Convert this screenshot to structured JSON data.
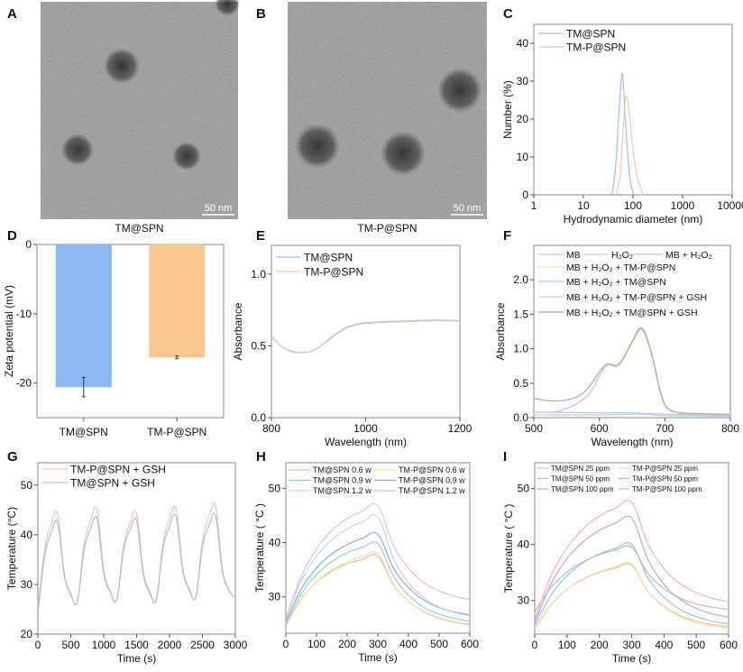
{
  "images": [
    {
      "panel": "A",
      "caption": "TM@SPN",
      "scale_bar": "50 nm"
    },
    {
      "panel": "B",
      "caption": "TM-P@SPN",
      "scale_bar": "50 nm"
    }
  ],
  "chart_data": [
    {
      "panel": "C",
      "type": "line",
      "xscale": "log",
      "xlabel": "Hydrodynamic diameter (nm)",
      "ylabel": "Number (%)",
      "xlim": [
        1,
        10000
      ],
      "ylim": [
        0,
        45
      ],
      "xticks": [
        1,
        10,
        100,
        1000,
        10000
      ],
      "xtick_labels": [
        "1",
        "10",
        "100",
        "1000",
        "10000"
      ],
      "yticks": [
        0,
        10,
        20,
        30,
        40
      ],
      "legend": "top-left",
      "series": [
        {
          "name": "TM@SPN",
          "color": "#9fc0e6",
          "x": [
            38,
            45,
            50,
            55,
            60,
            65,
            70,
            80,
            90,
            105
          ],
          "y": [
            0,
            8,
            18,
            26,
            32,
            28,
            20,
            9,
            3,
            0
          ]
        },
        {
          "name": "TM-P@SPN",
          "color": "#f5c8a8",
          "x": [
            45,
            55,
            60,
            65,
            70,
            75,
            80,
            90,
            100,
            120,
            150,
            170
          ],
          "y": [
            0,
            5,
            12,
            20,
            25,
            26,
            24,
            18,
            12,
            5,
            1,
            0
          ]
        }
      ]
    },
    {
      "panel": "D",
      "type": "bar",
      "ylabel": "Zeta potential (mV)",
      "xlabel": "",
      "ylim": [
        -25,
        0
      ],
      "yticks": [
        0,
        -10,
        -20
      ],
      "categories": [
        "TM@SPN",
        "TM-P@SPN"
      ],
      "values": [
        -20.6,
        -16.3
      ],
      "errors": [
        1.4,
        0.2
      ],
      "colors": [
        "#8ab8f0",
        "#f8c890"
      ]
    },
    {
      "panel": "E",
      "type": "line",
      "xlabel": "Wavelength (nm)",
      "ylabel": "Absorbance",
      "xlim": [
        800,
        1200
      ],
      "ylim": [
        0,
        1.2
      ],
      "xticks": [
        800,
        1000,
        1200
      ],
      "yticks": [
        0.0,
        0.5,
        1.0
      ],
      "ytick_decimals": 1,
      "legend": "top-left",
      "series": [
        {
          "name": "TM@SPN",
          "color": "#a8c4e8",
          "x": [
            800,
            820,
            840,
            860,
            880,
            900,
            920,
            940,
            960,
            980,
            1000,
            1050,
            1100,
            1150,
            1200
          ],
          "y": [
            0.57,
            0.5,
            0.465,
            0.455,
            0.46,
            0.49,
            0.54,
            0.59,
            0.63,
            0.65,
            0.66,
            0.67,
            0.675,
            0.68,
            0.675
          ]
        },
        {
          "name": "TM-P@SPN",
          "color": "#f0c89c",
          "x": [
            800,
            820,
            840,
            860,
            880,
            900,
            920,
            940,
            960,
            980,
            1000,
            1050,
            1100,
            1150,
            1200
          ],
          "y": [
            0.57,
            0.5,
            0.462,
            0.452,
            0.458,
            0.488,
            0.535,
            0.585,
            0.625,
            0.645,
            0.655,
            0.665,
            0.67,
            0.675,
            0.672
          ]
        }
      ]
    },
    {
      "panel": "F",
      "type": "line",
      "xlabel": "Wavelength (nm)",
      "ylabel": "Absorbance",
      "xlim": [
        500,
        800
      ],
      "ylim": [
        0,
        2.5
      ],
      "xticks": [
        500,
        600,
        700,
        800
      ],
      "yticks": [
        0.0,
        0.5,
        1.0,
        1.5,
        2.0
      ],
      "ytick_decimals": 1,
      "legend": "top",
      "series": [
        {
          "name": "MB",
          "color": "#f2b8a0",
          "x": [
            500,
            540,
            580,
            600,
            612,
            630,
            650,
            665,
            680,
            695,
            710,
            750,
            800
          ],
          "y": [
            0.08,
            0.1,
            0.3,
            0.6,
            0.77,
            0.77,
            1.1,
            1.28,
            0.9,
            0.3,
            0.1,
            0.05,
            0.04
          ]
        },
        {
          "name": "H₂O₂",
          "color": "#b8d0ea",
          "x": [
            500,
            600,
            665,
            700,
            800
          ],
          "y": [
            0.04,
            0.04,
            0.05,
            0.03,
            0.02
          ]
        },
        {
          "name": "MB + H₂O₂",
          "color": "#c8c8c8",
          "x": [
            500,
            540,
            580,
            600,
            612,
            630,
            650,
            665,
            680,
            695,
            710,
            750,
            800
          ],
          "y": [
            0.08,
            0.1,
            0.3,
            0.6,
            0.76,
            0.76,
            1.1,
            1.29,
            0.9,
            0.3,
            0.1,
            0.05,
            0.04
          ]
        },
        {
          "name": "MB + H₂O₂ + TM-P@SPN",
          "color": "#f5eaa0",
          "x": [
            500,
            540,
            580,
            600,
            612,
            630,
            650,
            665,
            680,
            695,
            710,
            750,
            800
          ],
          "y": [
            0.08,
            0.1,
            0.3,
            0.6,
            0.75,
            0.75,
            1.08,
            1.25,
            0.9,
            0.3,
            0.1,
            0.05,
            0.04
          ]
        },
        {
          "name": "MB + H₂O₂ + TM@SPN",
          "color": "#a8c8ee",
          "x": [
            500,
            600,
            650,
            700,
            800
          ],
          "y": [
            0.08,
            0.07,
            0.07,
            0.05,
            0.03
          ]
        },
        {
          "name": "MB + H₂O₂ + TM-P@SPN + GSH",
          "color": "#d8c0e8",
          "x": [
            500,
            540,
            580,
            600,
            612,
            630,
            650,
            665,
            680,
            695,
            710,
            750,
            800
          ],
          "y": [
            0.08,
            0.1,
            0.3,
            0.6,
            0.77,
            0.77,
            1.1,
            1.3,
            0.92,
            0.32,
            0.1,
            0.05,
            0.04
          ]
        },
        {
          "name": "MB + H₂O₂ + TM@SPN + GSH",
          "color": "#b0a8a0",
          "x": [
            500,
            530,
            560,
            580,
            600,
            612,
            630,
            650,
            665,
            680,
            695,
            710,
            750,
            800
          ],
          "y": [
            0.28,
            0.24,
            0.28,
            0.4,
            0.66,
            0.78,
            0.78,
            1.1,
            1.3,
            0.92,
            0.32,
            0.1,
            0.06,
            0.05
          ]
        }
      ]
    },
    {
      "panel": "G",
      "type": "line",
      "xlabel": "Time (s)",
      "ylabel": "Temperature (°C)",
      "xlim": [
        0,
        3000
      ],
      "ylim": [
        20,
        54.5
      ],
      "xticks": [
        0,
        500,
        1000,
        1500,
        2000,
        2500,
        3000
      ],
      "yticks": [
        20,
        30,
        40,
        50
      ],
      "legend": "top-left",
      "series": [
        {
          "name": "TM-P@SPN + GSH",
          "color": "#f5c4a4",
          "x": [
            0,
            100,
            200,
            300,
            400,
            500,
            600,
            700,
            800,
            900,
            1000,
            1100,
            1200,
            1300,
            1400,
            1500,
            1600,
            1700,
            1800,
            1900,
            2000,
            2100,
            2200,
            2300,
            2400,
            2500,
            2600,
            2700,
            2800,
            2900,
            3000
          ],
          "y": [
            25,
            36.8,
            42.0,
            44.2,
            32.4,
            28.1,
            26.5,
            37.9,
            42.9,
            45.0,
            33.0,
            28.6,
            27.0,
            37.6,
            42.3,
            44.3,
            32.8,
            28.6,
            27.0,
            38.2,
            43.1,
            45.2,
            33.4,
            29.1,
            27.5,
            38.8,
            43.7,
            45.8,
            33.5,
            29.0,
            27.3
          ]
        },
        {
          "name": "TM@SPN + GSH",
          "color": "#a4c0e6",
          "x": [
            0,
            100,
            200,
            300,
            400,
            500,
            600,
            700,
            800,
            900,
            1000,
            1100,
            1200,
            1300,
            1400,
            1500,
            1600,
            1700,
            1800,
            1900,
            2000,
            2100,
            2200,
            2300,
            2400,
            2500,
            2600,
            2700,
            2800,
            2900,
            3000
          ],
          "y": [
            24,
            35.4,
            40.4,
            42.5,
            31.9,
            27.9,
            26.5,
            36.7,
            41.2,
            43.1,
            32.3,
            28.4,
            26.9,
            36.7,
            41.0,
            42.8,
            32.2,
            28.2,
            26.8,
            37.1,
            41.7,
            43.6,
            32.9,
            28.9,
            27.5,
            37.5,
            41.9,
            43.8,
            32.8,
            28.8,
            27.3
          ]
        }
      ]
    },
    {
      "panel": "H",
      "type": "line",
      "xlabel": "Time (s)",
      "ylabel": "Temperature ( °C )",
      "xlim": [
        0,
        600
      ],
      "ylim": [
        23.3,
        54.7
      ],
      "xticks": [
        0,
        100,
        200,
        300,
        400,
        500,
        600
      ],
      "yticks": [
        30,
        40,
        50
      ],
      "legend": "top (2 columns)",
      "series": [
        {
          "name": "TM@SPN 0.6 w",
          "color": "#f4b8a0",
          "x": [
            0,
            50,
            100,
            150,
            200,
            250,
            300,
            350,
            400,
            450,
            500,
            550,
            600
          ],
          "y": [
            25,
            29.6,
            32.7,
            34.7,
            36.1,
            36.9,
            37.5,
            32.3,
            29.2,
            27.3,
            26.1,
            25.4,
            25.0
          ]
        },
        {
          "name": "TM-P@SPN 0.6 w",
          "color": "#f2e49c",
          "x": [
            0,
            50,
            100,
            150,
            200,
            250,
            300,
            350,
            400,
            450,
            500,
            550,
            600
          ],
          "y": [
            24.5,
            29.5,
            32.8,
            35.0,
            36.4,
            37.4,
            38.0,
            32.5,
            29.2,
            27.2,
            26.0,
            25.3,
            24.8
          ]
        },
        {
          "name": "TM@SPN 0.9 w",
          "color": "#8fd0c8",
          "x": [
            0,
            50,
            100,
            150,
            200,
            250,
            300,
            350,
            400,
            450,
            500,
            550,
            600
          ],
          "y": [
            25,
            30.5,
            34.1,
            36.5,
            38.1,
            39.1,
            39.8,
            33.9,
            30.3,
            28.1,
            26.8,
            26.0,
            25.5
          ]
        },
        {
          "name": "TM-P@SPN 0.9 w",
          "color": "#90a8d8",
          "x": [
            0,
            50,
            100,
            150,
            200,
            250,
            300,
            350,
            400,
            450,
            500,
            550,
            600
          ],
          "y": [
            25.5,
            31.4,
            35.3,
            37.9,
            39.6,
            40.8,
            41.5,
            35.4,
            31.7,
            29.4,
            28.0,
            27.2,
            26.7
          ]
        },
        {
          "name": "TM@SPN 1.2 w",
          "color": "#c4d4ee",
          "x": [
            0,
            50,
            100,
            150,
            200,
            250,
            300,
            350,
            400,
            450,
            500,
            550,
            600
          ],
          "y": [
            26,
            32.9,
            37.5,
            40.5,
            42.5,
            43.8,
            44.7,
            37.2,
            32.6,
            29.8,
            28.1,
            27.1,
            26.5
          ]
        },
        {
          "name": "TM-P@SPN 1.2 w",
          "color": "#e8b8e0",
          "x": [
            0,
            50,
            100,
            150,
            200,
            250,
            300,
            350,
            400,
            450,
            500,
            550,
            600
          ],
          "y": [
            26,
            33.7,
            38.8,
            42.2,
            44.4,
            45.8,
            46.8,
            39.6,
            35.3,
            32.6,
            31.1,
            30.1,
            29.5
          ]
        }
      ]
    },
    {
      "panel": "I",
      "type": "line",
      "xlabel": "Time (s)",
      "ylabel": "Temperature ( °C )",
      "xlim": [
        0,
        600
      ],
      "ylim": [
        24,
        54.6
      ],
      "xticks": [
        0,
        100,
        200,
        300,
        400,
        500,
        600
      ],
      "yticks": [
        30,
        40,
        50
      ],
      "legend": "top (2 columns)",
      "series": [
        {
          "name": "TM@SPN 25 ppm",
          "color": "#f4b8a0",
          "x": [
            0,
            50,
            100,
            150,
            200,
            250,
            300,
            350,
            400,
            450,
            500,
            550,
            600
          ],
          "y": [
            25,
            29.2,
            32.0,
            33.8,
            35.0,
            35.8,
            36.3,
            31.7,
            29.0,
            27.3,
            26.3,
            25.7,
            25.3
          ]
        },
        {
          "name": "TM-P@SPN 25 ppm",
          "color": "#f2e49c",
          "x": [
            0,
            50,
            100,
            150,
            200,
            250,
            300,
            350,
            400,
            450,
            500,
            550,
            600
          ],
          "y": [
            24.8,
            29.1,
            32.0,
            33.9,
            35.1,
            36.0,
            36.5,
            31.7,
            28.9,
            27.1,
            26.0,
            25.4,
            25.0
          ]
        },
        {
          "name": "TM@SPN 50 ppm",
          "color": "#b4c0b8",
          "x": [
            0,
            50,
            100,
            150,
            200,
            250,
            300,
            350,
            400,
            450,
            500,
            550,
            600
          ],
          "y": [
            28,
            32.3,
            35.1,
            36.9,
            38.2,
            39.0,
            39.5,
            34.9,
            32.1,
            30.4,
            29.4,
            28.8,
            28.4
          ]
        },
        {
          "name": "TM-P@SPN 50 ppm",
          "color": "#90c8d8",
          "x": [
            0,
            50,
            100,
            150,
            200,
            250,
            300,
            350,
            400,
            450,
            500,
            550,
            600
          ],
          "y": [
            25.5,
            30.9,
            34.4,
            36.8,
            38.3,
            39.3,
            40.0,
            34.1,
            30.6,
            28.4,
            27.1,
            26.3,
            25.8
          ]
        },
        {
          "name": "TM@SPN 100 ppm",
          "color": "#c8a0d8",
          "x": [
            0,
            50,
            100,
            150,
            200,
            250,
            300,
            350,
            400,
            450,
            500,
            550,
            600
          ],
          "y": [
            26,
            32.9,
            37.5,
            40.5,
            42.5,
            43.8,
            44.7,
            37.4,
            32.9,
            30.2,
            28.6,
            27.6,
            27.0
          ]
        },
        {
          "name": "TM-P@SPN 100 ppm",
          "color": "#f0a8d8",
          "x": [
            0,
            50,
            100,
            150,
            200,
            250,
            300,
            350,
            400,
            450,
            500,
            550,
            600
          ],
          "y": [
            26.5,
            34.3,
            39.4,
            42.8,
            45.1,
            46.5,
            47.5,
            40.2,
            35.7,
            33.0,
            31.4,
            30.4,
            29.8
          ]
        }
      ]
    }
  ]
}
